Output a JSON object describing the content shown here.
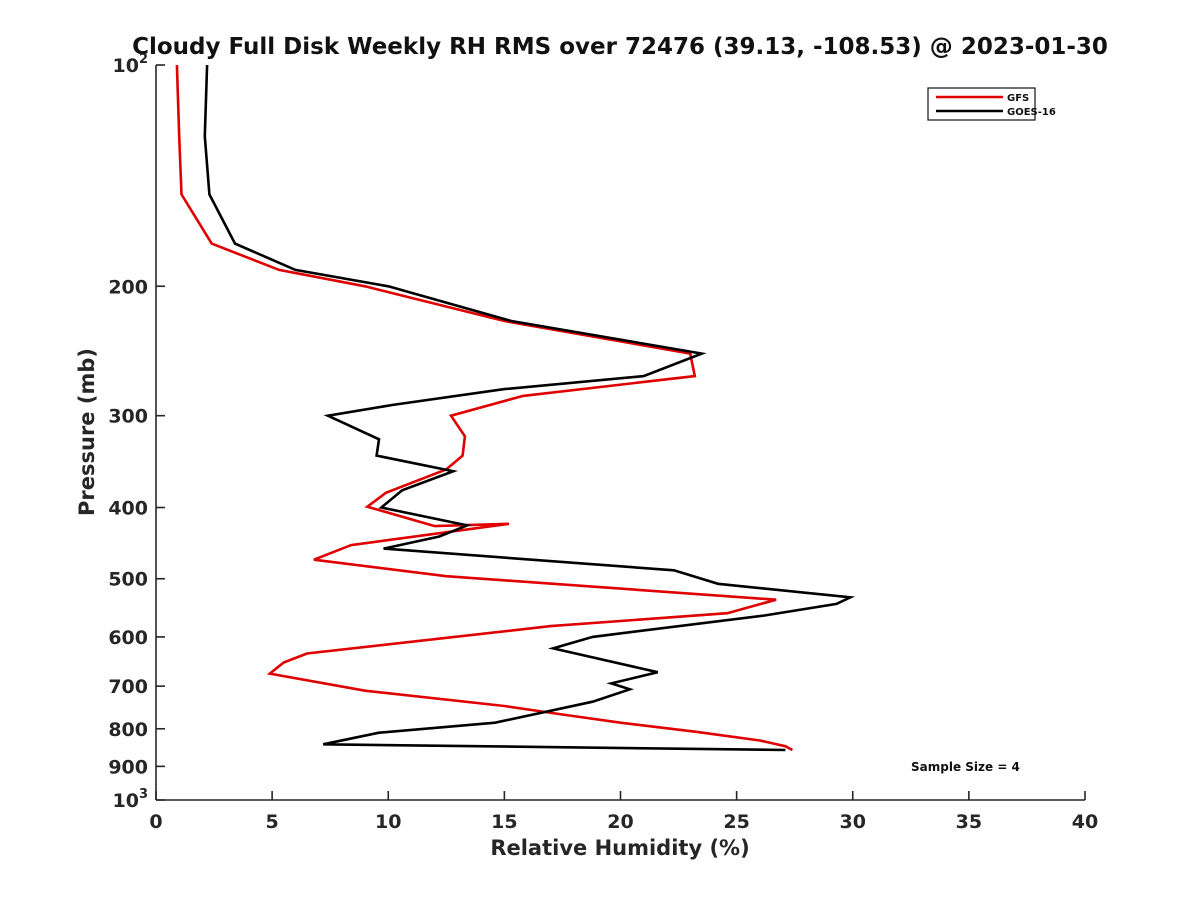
{
  "chart_data": {
    "type": "line",
    "title": "Cloudy Full Disk Weekly RH RMS over 72476 (39.13, -108.53) @ 2023-01-30",
    "xlabel": "Relative Humidity (%)",
    "ylabel": "Pressure (mb)",
    "xlim": [
      0,
      40
    ],
    "ylim": [
      100,
      1000
    ],
    "y_scale": "log",
    "y_reversed": true,
    "grid": false,
    "legend_position": "top-right",
    "x_ticks": [
      "0",
      "5",
      "10",
      "15",
      "20",
      "25",
      "30",
      "35",
      "40"
    ],
    "y_ticks": [
      {
        "value": 100,
        "label": "10",
        "sup": "2"
      },
      {
        "value": 200,
        "label": "200",
        "sup": ""
      },
      {
        "value": 300,
        "label": "300",
        "sup": ""
      },
      {
        "value": 400,
        "label": "400",
        "sup": ""
      },
      {
        "value": 500,
        "label": "500",
        "sup": ""
      },
      {
        "value": 600,
        "label": "600",
        "sup": ""
      },
      {
        "value": 700,
        "label": "700",
        "sup": ""
      },
      {
        "value": 800,
        "label": "800",
        "sup": ""
      },
      {
        "value": 900,
        "label": "900",
        "sup": ""
      },
      {
        "value": 1000,
        "label": "10",
        "sup": "3"
      }
    ],
    "series": [
      {
        "name": "GFS",
        "color": "#e00000",
        "points": [
          [
            0.9,
            100
          ],
          [
            1.0,
            125
          ],
          [
            1.1,
            150
          ],
          [
            2.4,
            175
          ],
          [
            5.3,
            190
          ],
          [
            9.0,
            200
          ],
          [
            15.0,
            223
          ],
          [
            23.0,
            247
          ],
          [
            23.2,
            265
          ],
          [
            15.8,
            282
          ],
          [
            12.7,
            300
          ],
          [
            13.3,
            320
          ],
          [
            13.2,
            340
          ],
          [
            12.5,
            355
          ],
          [
            9.9,
            382
          ],
          [
            9.1,
            399
          ],
          [
            12.0,
            424
          ],
          [
            15.2,
            421
          ],
          [
            8.4,
            450
          ],
          [
            6.8,
            471
          ],
          [
            12.5,
            496
          ],
          [
            26.7,
            534
          ],
          [
            24.6,
            557
          ],
          [
            17.0,
            580
          ],
          [
            6.5,
            632
          ],
          [
            5.5,
            650
          ],
          [
            4.9,
            673
          ],
          [
            9.0,
            710
          ],
          [
            15.0,
            745
          ],
          [
            17.5,
            765
          ],
          [
            20.0,
            785
          ],
          [
            23.3,
            808
          ],
          [
            26.0,
            830
          ],
          [
            27.1,
            845
          ],
          [
            27.4,
            855
          ]
        ]
      },
      {
        "name": "GOES-16",
        "color": "#000000",
        "points": [
          [
            2.2,
            100
          ],
          [
            2.1,
            125
          ],
          [
            2.3,
            150
          ],
          [
            3.4,
            175
          ],
          [
            6.0,
            190
          ],
          [
            10.0,
            200
          ],
          [
            15.3,
            223
          ],
          [
            23.5,
            247
          ],
          [
            21.0,
            265
          ],
          [
            15.0,
            276
          ],
          [
            10.2,
            290
          ],
          [
            7.4,
            300
          ],
          [
            9.6,
            323
          ],
          [
            9.5,
            340
          ],
          [
            12.8,
            357
          ],
          [
            10.6,
            379
          ],
          [
            9.7,
            400
          ],
          [
            13.4,
            423
          ],
          [
            12.2,
            438
          ],
          [
            9.8,
            455
          ],
          [
            22.3,
            487
          ],
          [
            24.2,
            508
          ],
          [
            29.9,
            530
          ],
          [
            29.3,
            541
          ],
          [
            26.2,
            561
          ],
          [
            18.8,
            600
          ],
          [
            17.1,
            622
          ],
          [
            21.6,
            670
          ],
          [
            19.6,
            694
          ],
          [
            20.4,
            707
          ],
          [
            18.8,
            735
          ],
          [
            14.6,
            785
          ],
          [
            9.6,
            810
          ],
          [
            7.2,
            840
          ],
          [
            27.1,
            855
          ]
        ]
      }
    ],
    "annotation": "Sample Size = 4"
  }
}
